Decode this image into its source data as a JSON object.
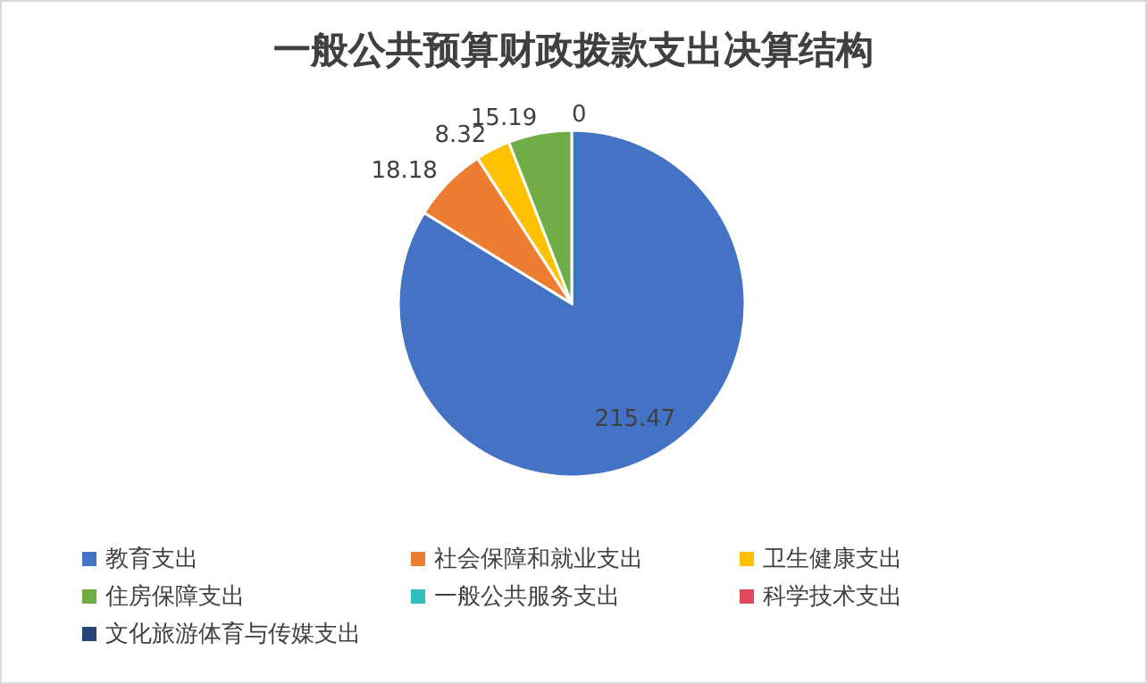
{
  "chart_data": {
    "type": "pie",
    "title": "一般公共预算财政拨款支出决算结构",
    "categories": [
      "教育支出",
      "社会保障和就业支出",
      "卫生健康支出",
      "住房保障支出",
      "一般公共服务支出",
      "科学技术支出",
      "文化旅游体育与传媒支出"
    ],
    "values": [
      215.47,
      18.18,
      8.32,
      15.19,
      0,
      0,
      0
    ],
    "value_labels": [
      "215.47",
      "18.18",
      "8.32",
      "15.19",
      "0",
      null,
      null
    ],
    "colors": [
      "#4472c4",
      "#ed7d31",
      "#ffc000",
      "#70ad47",
      "#2fbfbd",
      "#e0475a",
      "#264478"
    ],
    "legend": "bottom"
  }
}
